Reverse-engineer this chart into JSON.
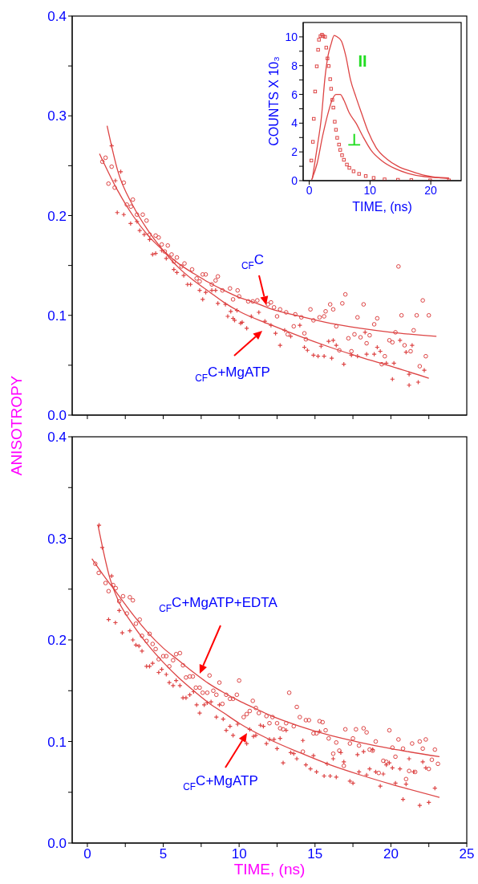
{
  "chart_data": [
    {
      "type": "scatter",
      "ylabel": "ANISOTROPY",
      "xlim": [
        -1,
        25
      ],
      "ylim": [
        0,
        0.4
      ],
      "tick_labels": "y",
      "xticks": [
        {
          "value": 0,
          "label": null
        },
        {
          "value": 2.5,
          "label": null
        },
        {
          "value": 5,
          "label": null
        },
        {
          "value": 7.5,
          "label": null
        },
        {
          "value": 10,
          "label": null
        },
        {
          "value": 12.5,
          "label": null
        },
        {
          "value": 15,
          "label": null
        },
        {
          "value": 17.5,
          "label": null
        },
        {
          "value": 20,
          "label": null
        },
        {
          "value": 22.5,
          "label": null
        }
      ],
      "yticks": [
        {
          "value": 0,
          "label": "0.0"
        },
        {
          "value": 0.05,
          "label": null
        },
        0.1,
        {
          "value": 0.15,
          "label": null
        },
        0.2,
        {
          "value": 0.25,
          "label": null
        },
        0.3,
        {
          "value": 0.35,
          "label": null
        },
        0.4
      ],
      "series": [
        {
          "marker": "circle",
          "color": "#dd4444",
          "x": [
            0.99,
            1.2,
            1.6,
            1.39,
            1.8,
            2.4,
            2.6,
            3.0,
            2.87,
            3.27,
            3.65,
            3.9,
            4.1,
            4.5,
            4.7,
            4.9,
            5.3,
            5.1,
            5.55,
            5.7,
            5.9,
            6.2,
            6.4,
            6.9,
            7.2,
            7.4,
            7.6,
            7.8,
            8.2,
            8.45,
            8.6,
            8.9,
            9.4,
            9.9,
            9.6,
            10.0,
            10.6,
            10.9,
            11.2,
            11.9,
            12.1,
            12.3,
            12.7,
            13.1,
            12.5,
            13.7,
            14.1,
            14.7,
            14.9,
            15.3,
            15.6,
            15.7,
            16.0,
            16.2,
            16.8,
            17.0,
            16.4,
            17.8,
            18.2,
            19.1,
            18.9,
            20.5,
            20.3,
            21.5,
            20.7,
            21.7,
            22.1,
            22.5,
            22.3,
            13.2,
            13.6,
            14.3,
            14.4,
            17.2,
            17.6,
            18.0,
            18.4,
            17.4,
            18.6,
            19.6,
            19.4,
            19.9,
            20.1,
            20.9,
            21.3,
            21.9,
            16.6
          ],
          "values": [
            0.254,
            0.258,
            0.249,
            0.232,
            0.228,
            0.233,
            0.211,
            0.216,
            0.209,
            0.201,
            0.201,
            0.195,
            0.181,
            0.18,
            0.178,
            0.171,
            0.17,
            0.164,
            0.161,
            0.154,
            0.158,
            0.149,
            0.152,
            0.146,
            0.137,
            0.134,
            0.141,
            0.141,
            0.131,
            0.135,
            0.139,
            0.125,
            0.127,
            0.125,
            0.116,
            0.119,
            0.114,
            0.114,
            0.115,
            0.111,
            0.113,
            0.108,
            0.106,
            0.103,
            0.099,
            0.101,
            0.098,
            0.106,
            0.095,
            0.098,
            0.099,
            0.104,
            0.111,
            0.106,
            0.112,
            0.121,
            0.089,
            0.098,
            0.111,
            0.097,
            0.091,
            0.149,
            0.083,
            0.085,
            0.1,
            0.1,
            0.115,
            0.1,
            0.059,
            0.081,
            0.089,
            0.082,
            0.076,
            0.077,
            0.081,
            0.078,
            0.072,
            0.064,
            0.08,
            0.059,
            0.051,
            0.075,
            0.073,
            0.07,
            0.064,
            0.049,
            0.065
          ]
        },
        {
          "marker": "cross",
          "color": "#dd4444",
          "x": [
            1.6,
            2.2,
            1.85,
            1.97,
            2.4,
            2.85,
            3.27,
            3.45,
            3.75,
            4.1,
            4.3,
            4.5,
            4.9,
            5.2,
            5.7,
            5.9,
            6.35,
            6.6,
            6.8,
            7.4,
            7.6,
            7.8,
            8.2,
            8.45,
            8.6,
            9.1,
            9.25,
            9.45,
            9.7,
            10.1,
            9.6,
            9.86,
            10.2,
            10.5,
            10.8,
            11.3,
            11.7,
            12.1,
            12.4,
            12.7,
            13.0,
            13.4,
            14.0,
            14.3,
            14.5,
            14.9,
            15.2,
            15.6,
            16.1,
            15.4,
            15.9,
            16.2,
            16.4,
            16.9,
            17.4,
            17.8,
            18.3,
            18.4,
            18.9,
            19.1,
            19.3,
            19.7,
            20.2,
            20.1,
            20.6,
            21.0,
            21.4,
            21.2,
            21.2,
            21.8,
            22.2
          ],
          "values": [
            0.27,
            0.244,
            0.235,
            0.203,
            0.201,
            0.192,
            0.194,
            0.185,
            0.181,
            0.176,
            0.161,
            0.162,
            0.165,
            0.157,
            0.146,
            0.143,
            0.14,
            0.131,
            0.131,
            0.125,
            0.116,
            0.123,
            0.125,
            0.125,
            0.112,
            0.111,
            0.099,
            0.104,
            0.095,
            0.092,
            0.097,
            0.105,
            0.093,
            0.087,
            0.099,
            0.103,
            0.094,
            0.09,
            0.082,
            0.07,
            0.085,
            0.079,
            0.09,
            0.068,
            0.065,
            0.06,
            0.059,
            0.059,
            0.057,
            0.069,
            0.074,
            0.075,
            0.07,
            0.051,
            0.06,
            0.059,
            0.083,
            0.061,
            0.061,
            0.068,
            0.064,
            0.052,
            0.052,
            0.036,
            0.075,
            0.063,
            0.07,
            0.041,
            0.03,
            0.033,
            0.045
          ]
        },
        {
          "type": "line",
          "color": "#dd4444",
          "x": [
            0.8,
            2,
            3,
            4,
            5,
            6,
            7,
            8,
            9,
            10,
            11,
            12,
            14,
            16,
            18,
            20,
            23
          ],
          "values": [
            0.262,
            0.225,
            0.2,
            0.18,
            0.165,
            0.152,
            0.142,
            0.133,
            0.125,
            0.118,
            0.113,
            0.107,
            0.099,
            0.092,
            0.087,
            0.083,
            0.079
          ]
        },
        {
          "type": "line",
          "color": "#dd4444",
          "x": [
            1.3,
            2,
            3,
            4,
            5,
            6,
            7,
            8,
            9,
            10,
            12,
            14,
            16,
            18,
            20,
            22.5
          ],
          "values": [
            0.29,
            0.245,
            0.21,
            0.185,
            0.165,
            0.148,
            0.135,
            0.124,
            0.113,
            0.104,
            0.091,
            0.079,
            0.068,
            0.058,
            0.049,
            0.037
          ]
        }
      ],
      "annotations": [
        "$_{CF}$C",
        "$_{CF}$C+MgATP"
      ]
    },
    {
      "type": "line",
      "xlabel": "TIME, (ns)",
      "ylabel": "COUNTS X 10₃",
      "xlim": [
        -1,
        25
      ],
      "ylim": [
        0,
        11
      ],
      "xticks": [
        0,
        10,
        20
      ],
      "yticks": [
        0,
        {
          "value": 1,
          "label": null
        },
        2,
        {
          "value": 3,
          "label": null
        },
        4,
        {
          "value": 5,
          "label": null
        },
        6,
        {
          "value": 7,
          "label": null
        },
        8,
        {
          "value": 9,
          "label": null
        },
        10
      ],
      "series": [
        {
          "color": "#dd4444",
          "x": [
            0.5,
            1.3,
            2.0,
            2.6,
            3.1,
            3.6,
            4.1,
            4.6,
            5.3,
            6.0,
            6.8,
            7.7,
            8.6,
            9.7,
            11.0,
            12.8,
            14.6,
            16.8,
            19.0,
            21.6,
            23.0
          ],
          "values": [
            0.1,
            2.3,
            4.4,
            7.2,
            8.7,
            9.5,
            10.1,
            10.0,
            9.7,
            8.7,
            7.0,
            5.8,
            4.7,
            3.4,
            2.3,
            1.5,
            1.0,
            0.65,
            0.37,
            0.19,
            0.15
          ]
        },
        {
          "color": "#dd4444",
          "x": [
            0.4,
            1.3,
            2.2,
            3.1,
            3.75,
            4.4,
            5.1,
            5.7,
            6.6,
            7.7,
            8.8,
            10.2,
            11.9,
            14.1,
            16.3,
            19.0,
            23.0
          ],
          "values": [
            0.05,
            1.2,
            3.1,
            4.7,
            5.6,
            6.0,
            6.0,
            5.6,
            4.7,
            4.0,
            3.1,
            2.1,
            1.4,
            0.84,
            0.5,
            0.28,
            0.19
          ]
        },
        {
          "type": "scatter",
          "marker": "square",
          "color": "#dd4444",
          "x": [
            0.35,
            0.6,
            0.75,
            0.97,
            1.24,
            1.46,
            1.6,
            1.85,
            2.1,
            2.3,
            2.6,
            2.8,
            3.0,
            3.2,
            3.45,
            3.6,
            3.8,
            3.97,
            4.2,
            4.4,
            4.6,
            4.9,
            5.1,
            5.4,
            5.7,
            6.2,
            6.6,
            7.3,
            8.2,
            9.3,
            10.6,
            12.4,
            14.6,
            16.8,
            19.9,
            23.0
          ],
          "values": [
            1.4,
            2.7,
            4.3,
            6.2,
            7.95,
            9.1,
            9.8,
            10.05,
            10.15,
            10.05,
            10.0,
            9.25,
            8.5,
            7.97,
            7.06,
            6.39,
            5.62,
            5.08,
            4.1,
            3.54,
            2.98,
            2.51,
            2.14,
            1.77,
            1.45,
            1.12,
            0.89,
            0.65,
            0.47,
            0.32,
            0.19,
            0.09,
            0.06,
            0.04,
            0.02,
            0.02
          ]
        }
      ],
      "annotations": [
        "II",
        "⊥"
      ]
    },
    {
      "type": "scatter",
      "xlabel": "TIME, (ns)",
      "xlim": [
        -1,
        25
      ],
      "ylim": [
        0,
        0.4
      ],
      "xticks": [
        0,
        {
          "value": 2.5,
          "label": null
        },
        5,
        {
          "value": 7.5,
          "label": null
        },
        10,
        {
          "value": 12.5,
          "label": null
        },
        15,
        {
          "value": 17.5,
          "label": null
        },
        20,
        {
          "value": 22.5,
          "label": null
        },
        25
      ],
      "yticks": [
        {
          "value": 0,
          "label": "0.0"
        },
        {
          "value": 0.05,
          "label": null
        },
        0.1,
        {
          "value": 0.15,
          "label": null
        },
        0.2,
        {
          "value": 0.25,
          "label": null
        },
        0.3,
        {
          "value": 0.35,
          "label": null
        },
        0.4
      ],
      "series": [
        {
          "marker": "circle",
          "color": "#dd4444",
          "x": [
            0.52,
            0.75,
            1.2,
            1.4,
            1.7,
            1.87,
            2.1,
            2.35,
            2.6,
            2.8,
            3.0,
            3.2,
            3.45,
            3.6,
            3.9,
            4.1,
            4.3,
            4.5,
            4.7,
            5.0,
            5.2,
            5.4,
            5.65,
            5.85,
            6.1,
            6.3,
            6.5,
            6.75,
            6.95,
            7.15,
            7.4,
            7.6,
            7.9,
            8.05,
            8.3,
            8.5,
            8.7,
            8.9,
            9.15,
            9.4,
            9.6,
            9.85,
            10.0,
            10.3,
            10.5,
            10.7,
            10.9,
            11.1,
            11.3,
            11.8,
            12.0,
            12.2,
            12.5,
            12.7,
            12.9,
            13.1,
            13.3,
            13.6,
            13.8,
            14.0,
            14.4,
            14.6,
            14.2,
            14.9,
            15.1,
            15.3,
            15.5,
            15.7,
            15.9,
            16.2,
            16.4,
            16.6,
            16.9,
            17.0,
            17.3,
            17.5,
            17.7,
            17.9,
            18.2,
            18.4,
            18.6,
            18.8,
            19.0,
            19.2,
            19.5,
            19.7,
            19.9,
            20.1,
            20.3,
            20.5,
            20.8,
            21.0,
            21.2,
            21.4,
            21.6,
            21.9,
            22.1,
            22.3,
            22.5,
            22.7,
            22.9,
            23.1
          ],
          "values": [
            0.275,
            0.266,
            0.256,
            0.248,
            0.254,
            0.251,
            0.238,
            0.243,
            0.226,
            0.242,
            0.239,
            0.216,
            0.22,
            0.204,
            0.199,
            0.206,
            0.196,
            0.191,
            0.181,
            0.184,
            0.184,
            0.174,
            0.18,
            0.186,
            0.187,
            0.175,
            0.163,
            0.164,
            0.164,
            0.153,
            0.153,
            0.148,
            0.148,
            0.165,
            0.15,
            0.146,
            0.158,
            0.137,
            0.146,
            0.142,
            0.142,
            0.146,
            0.16,
            0.124,
            0.127,
            0.13,
            0.14,
            0.133,
            0.128,
            0.125,
            0.118,
            0.124,
            0.118,
            0.113,
            0.112,
            0.118,
            0.148,
            0.115,
            0.134,
            0.124,
            0.121,
            0.121,
            0.09,
            0.108,
            0.108,
            0.12,
            0.119,
            0.111,
            0.103,
            0.088,
            0.099,
            0.091,
            0.076,
            0.112,
            0.098,
            0.103,
            0.112,
            0.096,
            0.113,
            0.109,
            0.092,
            0.091,
            0.1,
            0.069,
            0.081,
            0.08,
            0.111,
            0.094,
            0.085,
            0.102,
            0.093,
            0.063,
            0.071,
            0.098,
            0.07,
            0.1,
            0.093,
            0.102,
            0.073,
            0.082,
            0.092,
            0.078
          ]
        },
        {
          "marker": "cross",
          "color": "#dd4444",
          "x": [
            0.77,
            0.98,
            1.4,
            1.85,
            1.6,
            2.1,
            2.3,
            2.8,
            3.0,
            3.2,
            3.4,
            3.6,
            3.9,
            4.1,
            4.3,
            4.7,
            4.9,
            5.2,
            5.4,
            5.65,
            5.85,
            6.1,
            6.3,
            6.5,
            6.75,
            7.0,
            7.2,
            7.4,
            7.7,
            7.9,
            8.15,
            8.5,
            8.7,
            8.95,
            9.15,
            9.4,
            9.6,
            9.9,
            10.5,
            10.7,
            10.95,
            11.1,
            11.4,
            11.6,
            11.8,
            12.0,
            12.3,
            12.5,
            12.7,
            12.9,
            13.1,
            13.4,
            13.6,
            13.8,
            14.2,
            14.4,
            14.7,
            14.9,
            15.1,
            15.3,
            15.6,
            15.8,
            16.0,
            16.2,
            16.4,
            16.7,
            16.9,
            17.3,
            17.5,
            17.8,
            17.9,
            18.2,
            18.4,
            18.6,
            18.8,
            19.0,
            19.3,
            19.5,
            19.7,
            19.9,
            20.1,
            20.3,
            20.6,
            20.8,
            21.0,
            21.2,
            21.5,
            21.9,
            22.1,
            22.3,
            22.5,
            22.9
          ],
          "values": [
            0.313,
            0.291,
            0.22,
            0.217,
            0.263,
            0.229,
            0.207,
            0.209,
            0.2,
            0.195,
            0.194,
            0.189,
            0.174,
            0.174,
            0.177,
            0.168,
            0.171,
            0.166,
            0.158,
            0.155,
            0.16,
            0.155,
            0.143,
            0.143,
            0.146,
            0.149,
            0.136,
            0.128,
            0.136,
            0.138,
            0.139,
            0.124,
            0.136,
            0.122,
            0.111,
            0.115,
            0.106,
            0.117,
            0.098,
            0.112,
            0.105,
            0.106,
            0.116,
            0.115,
            0.098,
            0.102,
            0.102,
            0.093,
            0.103,
            0.079,
            0.111,
            0.089,
            0.088,
            0.083,
            0.101,
            0.077,
            0.073,
            0.086,
            0.07,
            0.11,
            0.066,
            0.078,
            0.066,
            0.083,
            0.065,
            0.089,
            0.08,
            0.061,
            0.059,
            0.087,
            0.07,
            0.09,
            0.067,
            0.073,
            0.092,
            0.07,
            0.056,
            0.068,
            0.077,
            0.079,
            0.074,
            0.059,
            0.073,
            0.043,
            0.058,
            0.083,
            0.07,
            0.037,
            0.08,
            0.074,
            0.04,
            0.054
          ]
        },
        {
          "type": "line",
          "color": "#dd4444",
          "x": [
            0.3,
            1,
            2,
            3,
            4,
            5,
            6,
            7,
            8,
            9,
            10,
            11,
            12,
            14,
            16,
            18,
            20,
            23.2
          ],
          "values": [
            0.28,
            0.265,
            0.245,
            0.225,
            0.207,
            0.192,
            0.18,
            0.168,
            0.157,
            0.148,
            0.14,
            0.133,
            0.126,
            0.115,
            0.106,
            0.099,
            0.093,
            0.085
          ]
        },
        {
          "type": "line",
          "color": "#dd4444",
          "x": [
            0.7,
            1.5,
            2,
            3,
            4,
            5,
            6,
            7,
            8,
            9,
            10,
            12,
            14,
            16,
            18,
            20,
            23.2
          ],
          "values": [
            0.313,
            0.26,
            0.24,
            0.215,
            0.195,
            0.178,
            0.163,
            0.15,
            0.138,
            0.128,
            0.118,
            0.102,
            0.089,
            0.077,
            0.067,
            0.058,
            0.045
          ]
        }
      ],
      "annotations": [
        "$_{CF}$C+MgATP+EDTA",
        "$_{CF}$C+MgATP"
      ]
    }
  ]
}
